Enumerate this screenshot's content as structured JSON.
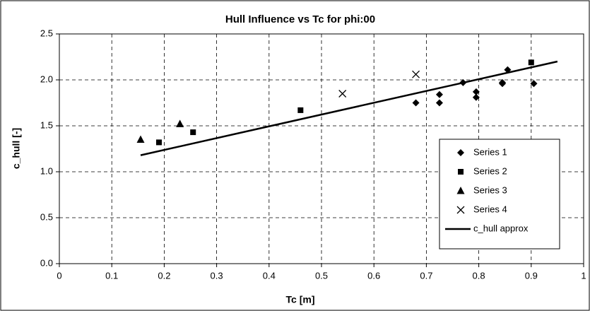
{
  "chart_data": {
    "type": "scatter",
    "title": "Hull Influence vs Tc  for phi:00",
    "x_label": "Tc [m]",
    "y_label": "c_hull [-]",
    "xlim": [
      0,
      1
    ],
    "ylim": [
      0,
      2.5
    ],
    "xticks": [
      0,
      0.1,
      0.2,
      0.3,
      0.4,
      0.5,
      0.6,
      0.7,
      0.8,
      0.9,
      1
    ],
    "yticks": [
      {
        "value": 0,
        "label": "0.0"
      },
      {
        "value": 0.5,
        "label": "0.5"
      },
      {
        "value": 1,
        "label": "1.0"
      },
      {
        "value": 1.5,
        "label": "1.5"
      },
      {
        "value": 2,
        "label": "2.0"
      },
      {
        "value": 2.5,
        "label": "2.5"
      }
    ],
    "grid": true,
    "legend": "lower right",
    "series": [
      {
        "name": "Series 1",
        "color": "#000000",
        "marker": "diamond",
        "x": [
          0.68,
          0.725,
          0.725,
          0.77,
          0.795,
          0.795,
          0.845,
          0.845,
          0.855,
          0.905
        ],
        "values": [
          1.75,
          1.75,
          1.84,
          1.97,
          1.81,
          1.87,
          1.96,
          1.97,
          2.11,
          1.96
        ]
      },
      {
        "name": "Series 2",
        "color": "#000000",
        "marker": "square",
        "x": [
          0.19,
          0.255,
          0.46,
          0.9
        ],
        "values": [
          1.32,
          1.43,
          1.67,
          2.19
        ]
      },
      {
        "name": "Series 3",
        "color": "#000000",
        "marker": "triangle",
        "x": [
          0.155,
          0.23
        ],
        "values": [
          1.35,
          1.52
        ]
      },
      {
        "name": "Series 4",
        "color": "#000000",
        "marker": "x",
        "x": [
          0.54,
          0.68
        ],
        "values": [
          1.85,
          2.06
        ]
      },
      {
        "name": "c_hull approx",
        "color": "#000000",
        "marker": "line",
        "x": [
          0.155,
          0.95
        ],
        "values": [
          1.18,
          2.2
        ]
      }
    ]
  }
}
